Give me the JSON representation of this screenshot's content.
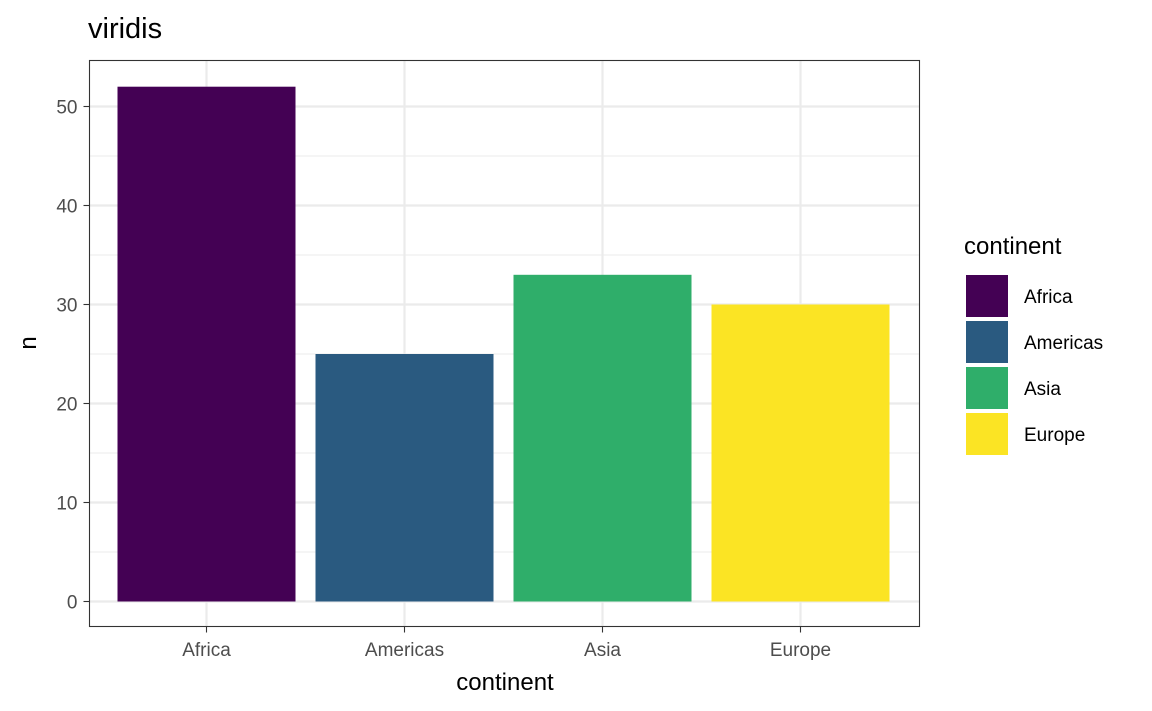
{
  "chart_data": {
    "type": "bar",
    "title": "viridis",
    "xlabel": "continent",
    "ylabel": "n",
    "categories": [
      "Africa",
      "Americas",
      "Asia",
      "Europe"
    ],
    "values": [
      52,
      25,
      33,
      30
    ],
    "colors": [
      "#440154",
      "#2A5A80",
      "#2FAE6A",
      "#FBE424"
    ],
    "ylim": [
      0,
      55
    ],
    "yticks": [
      0,
      10,
      20,
      30,
      40,
      50
    ],
    "grid": true,
    "legend": {
      "title": "continent",
      "position": "right",
      "entries": [
        "Africa",
        "Americas",
        "Asia",
        "Europe"
      ]
    }
  }
}
